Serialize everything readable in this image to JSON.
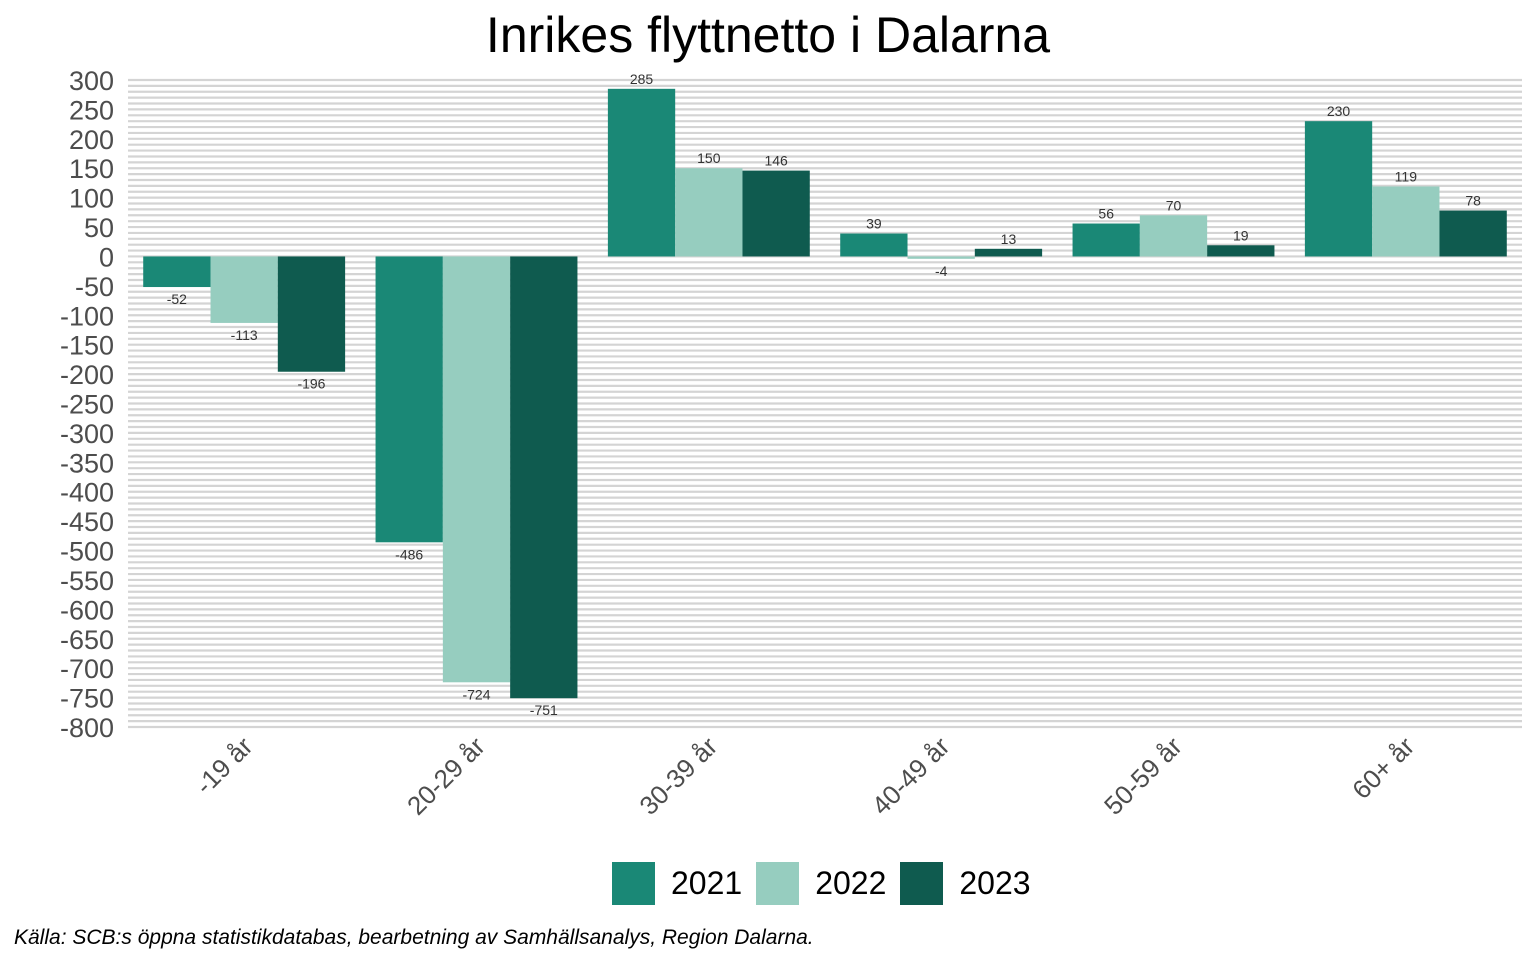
{
  "chart_data": {
    "type": "bar",
    "title": "Inrikes flyttnetto i Dalarna",
    "xlabel": "",
    "ylabel": "",
    "categories": [
      "-19 år",
      "20-29 år",
      "30-39 år",
      "40-49 år",
      "50-59 år",
      "60+ år"
    ],
    "series": [
      {
        "name": "2021",
        "color": "#1a8876",
        "values": [
          -52,
          -486,
          285,
          39,
          56,
          230
        ],
        "labels": [
          "-52",
          "-486",
          "285",
          "39",
          "56",
          "230"
        ]
      },
      {
        "name": "2022",
        "color": "#96cdbf",
        "values": [
          -113,
          -724,
          150,
          -4,
          70,
          119
        ],
        "labels": [
          "-113",
          "-724",
          "150",
          "-4",
          "70",
          "119"
        ]
      },
      {
        "name": "2023",
        "color": "#0f5b4f",
        "values": [
          -196,
          -751,
          146,
          13,
          19,
          78
        ],
        "labels": [
          "-196",
          "-751",
          "146",
          "13",
          "19",
          "78"
        ]
      }
    ],
    "ylim": [
      -800,
      300
    ],
    "yticks": [
      300,
      250,
      200,
      150,
      100,
      50,
      0,
      -50,
      -100,
      -150,
      -200,
      -250,
      -300,
      -350,
      -400,
      -450,
      -500,
      -550,
      -600,
      -650,
      -700,
      -750,
      -800
    ],
    "grid": true,
    "legend_position": "bottom"
  },
  "source_note": "Källa: SCB:s öppna statistikdatabas, bearbetning av Samhällsanalys, Region Dalarna."
}
